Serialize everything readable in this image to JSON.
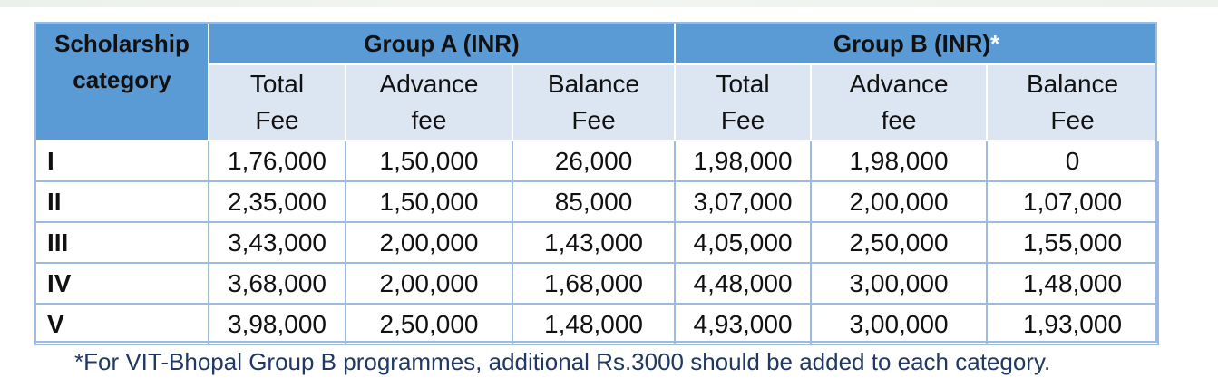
{
  "table": {
    "header": {
      "category_label": "Scholarship category",
      "category_line1": "Scholarship",
      "category_line2": "category",
      "group_a": "Group A (INR)",
      "group_b": "Group B (INR)",
      "group_b_marker": "*",
      "sub_headers": [
        {
          "line1": "Total",
          "line2": "Fee"
        },
        {
          "line1": "Advance",
          "line2": "fee"
        },
        {
          "line1": "Balance",
          "line2": "Fee"
        },
        {
          "line1": "Total",
          "line2": "Fee"
        },
        {
          "line1": "Advance",
          "line2": "fee"
        },
        {
          "line1": "Balance",
          "line2": "Fee"
        }
      ]
    },
    "rows": [
      {
        "category": "I",
        "values": [
          "1,76,000",
          "1,50,000",
          "26,000",
          "1,98,000",
          "1,98,000",
          "0"
        ]
      },
      {
        "category": "II",
        "values": [
          "2,35,000",
          "1,50,000",
          "85,000",
          "3,07,000",
          "2,00,000",
          "1,07,000"
        ]
      },
      {
        "category": "III",
        "values": [
          "3,43,000",
          "2,00,000",
          "1,43,000",
          "4,05,000",
          "2,50,000",
          "1,55,000"
        ]
      },
      {
        "category": "IV",
        "values": [
          "3,68,000",
          "2,00,000",
          "1,68,000",
          "4,48,000",
          "3,00,000",
          "1,48,000"
        ]
      },
      {
        "category": "V",
        "values": [
          "3,98,000",
          "2,50,000",
          "1,48,000",
          "4,93,000",
          "3,00,000",
          "1,93,000"
        ]
      }
    ]
  },
  "footnote": "*For VIT-Bhopal Group B programmes, additional Rs.3000 should be added to each category.",
  "colors": {
    "header_blue": "#5b9bd5",
    "subheader_light": "#dce6f2",
    "grid_line": "#9dbbe0",
    "footnote_text": "#1f3864"
  }
}
